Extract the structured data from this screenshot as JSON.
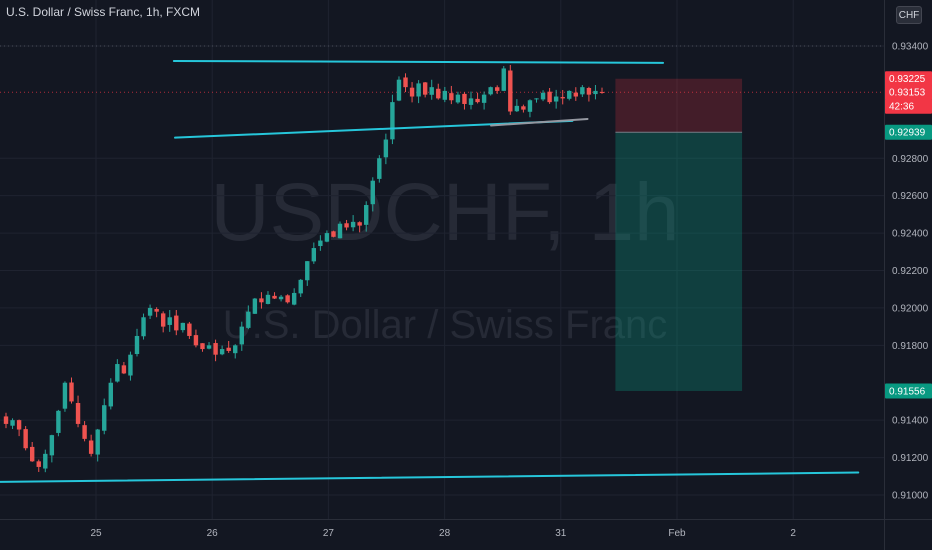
{
  "header": {
    "title": "U.S. Dollar / Swiss Franc, 1h, FXCM",
    "currency": "CHF"
  },
  "watermark": {
    "symbol": "USDCHF, 1h",
    "name": "U.S. Dollar / Swiss Franc"
  },
  "colors": {
    "background": "#131722",
    "up": "#26a69a",
    "down": "#ef5350",
    "trendline": "#26c6da",
    "stop_zone": "#f2364540",
    "target_zone": "#089981"
  },
  "chart_data": {
    "type": "candlestick",
    "x_tick_labels": [
      "25",
      "26",
      "27",
      "28",
      "31",
      "Feb",
      "2"
    ],
    "y_ticks": [
      "0.93400",
      "0.92800",
      "0.92600",
      "0.92400",
      "0.92200",
      "0.92000",
      "0.91800",
      "0.91400",
      "0.91200",
      "0.91000"
    ],
    "ylim": [
      0.9093,
      0.9353
    ],
    "price_tags": [
      {
        "value": "0.93225",
        "color": "#f23645"
      },
      {
        "value": "0.93153",
        "color": "#f23645"
      },
      {
        "value": "42:36",
        "color": "#f23645"
      },
      {
        "value": "0.92939",
        "color": "#089981"
      },
      {
        "value": "0.91556",
        "color": "#089981"
      }
    ],
    "position": {
      "side": "short",
      "entry": 0.92939,
      "stop": 0.93225,
      "target": 0.91556
    },
    "trendlines": [
      {
        "name": "pattern top",
        "from": [
          0.67,
          0.9332
        ],
        "to": [
          4.88,
          0.9331
        ]
      },
      {
        "name": "pattern bottom",
        "from": [
          0.68,
          0.9291
        ],
        "to": [
          4.1,
          0.93
        ]
      },
      {
        "name": "projection",
        "from": [
          3.4,
          0.92975
        ],
        "to": [
          4.23,
          0.9301
        ]
      },
      {
        "name": "long-term support",
        "from": [
          -0.83,
          0.9107
        ],
        "to": [
          6.56,
          0.9112
        ]
      }
    ],
    "price_series": [
      0.9138,
      0.914,
      0.9135,
      0.9125,
      0.9118,
      0.9115,
      0.9122,
      0.9132,
      0.9145,
      0.916,
      0.915,
      0.9138,
      0.913,
      0.9122,
      0.9135,
      0.9148,
      0.916,
      0.917,
      0.9165,
      0.9175,
      0.9185,
      0.9195,
      0.92,
      0.9198,
      0.919,
      0.9195,
      0.9188,
      0.9192,
      0.9185,
      0.918,
      0.9178,
      0.918,
      0.9175,
      0.9178,
      0.9177,
      0.918,
      0.919,
      0.9198,
      0.9205,
      0.9203,
      0.9207,
      0.9205,
      0.9206,
      0.9203,
      0.9208,
      0.9215,
      0.9225,
      0.9232,
      0.9236,
      0.924,
      0.9238,
      0.9245,
      0.9243,
      0.9246,
      0.9244,
      0.9255,
      0.9268,
      0.928,
      0.929,
      0.931,
      0.9322,
      0.9318,
      0.9313,
      0.932,
      0.9314,
      0.9318,
      0.9312,
      0.9316,
      0.9311,
      0.9314,
      0.9309,
      0.9312,
      0.931,
      0.9314,
      0.9318,
      0.9316,
      0.9328,
      0.9305,
      0.9308,
      0.9306,
      0.9311,
      0.9312,
      0.9315,
      0.931,
      0.9313,
      0.9312,
      0.9316,
      0.9313,
      0.9318,
      0.9314,
      0.9316,
      0.9315
    ]
  }
}
